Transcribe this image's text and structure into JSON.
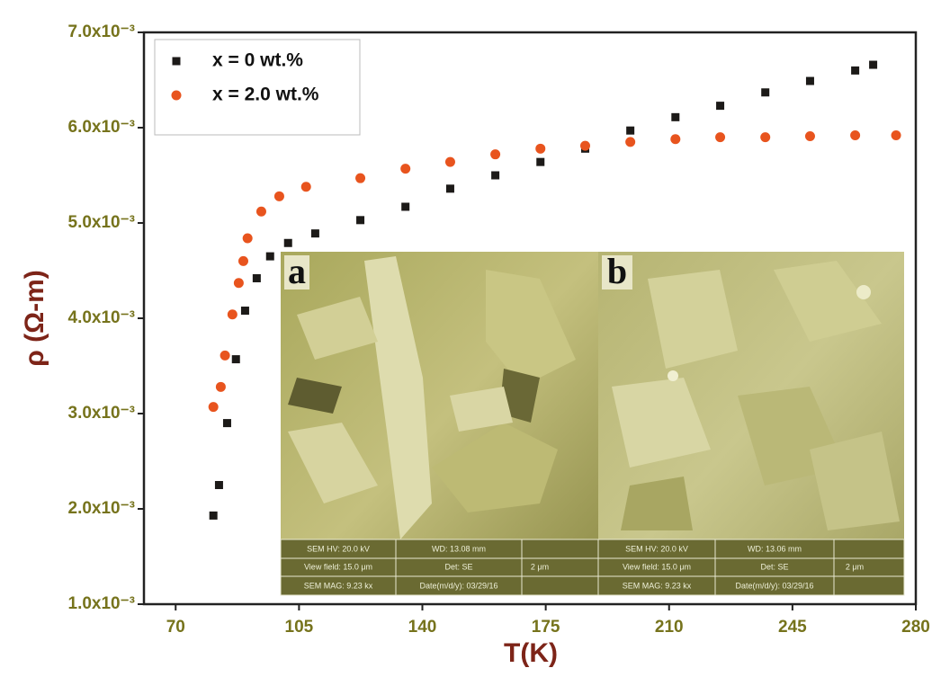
{
  "chart_data": {
    "type": "scatter",
    "x_label": "T(K)",
    "y_label": "ρ (Ω-m)",
    "xlim": [
      61,
      280
    ],
    "xticks": [
      70,
      105,
      140,
      175,
      210,
      245,
      280
    ],
    "ylim": [
      0.001,
      0.007
    ],
    "yticks": [
      {
        "value": 0.001,
        "label": "1.0x10⁻³"
      },
      {
        "value": 0.002,
        "label": "2.0x10⁻³"
      },
      {
        "value": 0.003,
        "label": "3.0x10⁻³"
      },
      {
        "value": 0.004,
        "label": "4.0x10⁻³"
      },
      {
        "value": 0.005,
        "label": "5.0x10⁻³"
      },
      {
        "value": 0.006,
        "label": "6.0x10⁻³"
      },
      {
        "value": 0.007,
        "label": "7.0x10⁻³"
      }
    ],
    "legend": "upper left",
    "series": [
      {
        "name": "x = 0 wt.%",
        "color": "#1c1a18",
        "marker": "square",
        "x": [
          80.7,
          82.3,
          84.6,
          87.1,
          89.7,
          93.0,
          96.8,
          101.9,
          109.6,
          122.4,
          135.2,
          147.9,
          160.7,
          173.5,
          186.2,
          199.0,
          211.8,
          224.5,
          237.3,
          250.0,
          262.8,
          267.9
        ],
        "values": [
          0.00193,
          0.00225,
          0.0029,
          0.00357,
          0.00408,
          0.00442,
          0.00465,
          0.00479,
          0.00489,
          0.00503,
          0.00517,
          0.00536,
          0.0055,
          0.00564,
          0.00578,
          0.00597,
          0.00611,
          0.00623,
          0.00637,
          0.00649,
          0.0066,
          0.00666
        ]
      },
      {
        "name": "x = 2.0 wt.%",
        "color": "#e8541e",
        "marker": "circle",
        "x": [
          80.7,
          82.8,
          84.0,
          86.1,
          87.9,
          89.2,
          90.4,
          94.3,
          99.4,
          107.0,
          122.4,
          135.2,
          147.9,
          160.7,
          173.5,
          186.2,
          199.0,
          211.8,
          224.5,
          237.3,
          250.0,
          262.8,
          274.4
        ],
        "values": [
          0.00307,
          0.00328,
          0.00361,
          0.00404,
          0.00437,
          0.0046,
          0.00484,
          0.00512,
          0.00528,
          0.00538,
          0.00547,
          0.00557,
          0.00564,
          0.00572,
          0.00578,
          0.00581,
          0.00585,
          0.00588,
          0.0059,
          0.0059,
          0.00591,
          0.00592,
          0.00592
        ]
      }
    ]
  },
  "insets": [
    {
      "label": "a",
      "hv": "SEM HV: 20.0 kV",
      "wd": "WD: 13.08 mm",
      "view": "View field: 15.0 μm",
      "det": "Det: SE",
      "scale": "2 μm",
      "mag": "SEM MAG: 9.23 kx",
      "date": "Date(m/d/y): 03/29/16"
    },
    {
      "label": "b",
      "hv": "SEM HV: 20.0 kV",
      "wd": "WD: 13.06 mm",
      "view": "View field: 15.0 μm",
      "det": "Det: SE",
      "scale": "2 μm",
      "mag": "SEM MAG: 9.23 kx",
      "date": "Date(m/d/y): 03/29/16"
    }
  ]
}
